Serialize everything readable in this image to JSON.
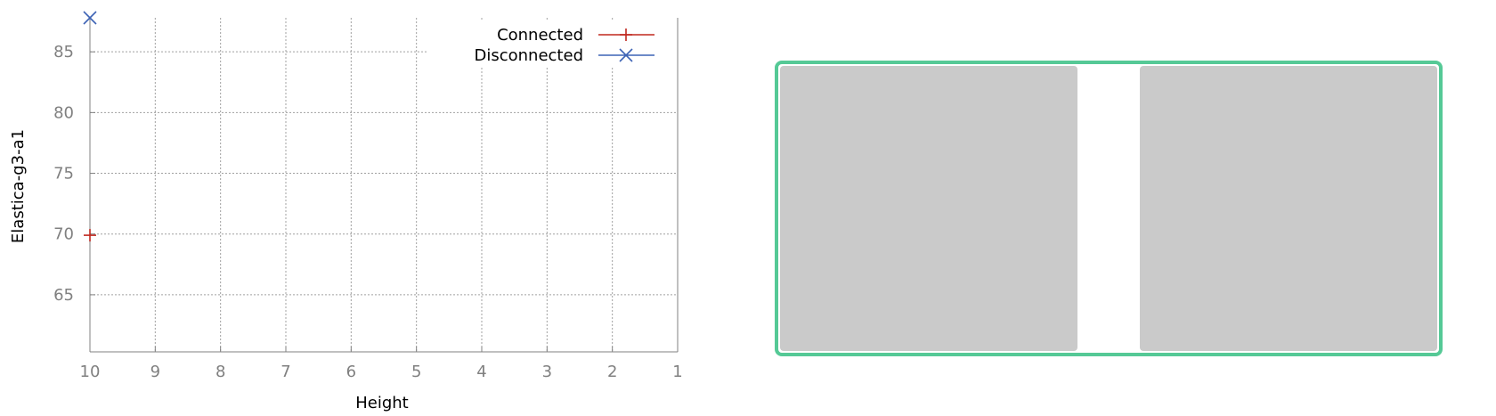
{
  "chart_data": {
    "type": "scatter",
    "title": "",
    "xlabel": "Height",
    "ylabel": "Elastica-g3-a1",
    "xlim": [
      10,
      1
    ],
    "x_reversed": true,
    "ylim": [
      60.3,
      87.8
    ],
    "x_ticks": [
      "10",
      "9",
      "8",
      "7",
      "6",
      "5",
      "4",
      "3",
      "2",
      "1"
    ],
    "y_ticks": [
      "65",
      "70",
      "75",
      "80",
      "85"
    ],
    "grid": true,
    "legend_position": "top-right",
    "series": [
      {
        "name": "Connected",
        "marker": "plus",
        "color": "#c0281f",
        "points": [
          {
            "x": 10,
            "y": 69.9
          }
        ]
      },
      {
        "name": "Disconnected",
        "marker": "cross",
        "color": "#3d63b5",
        "points": [
          {
            "x": 10,
            "y": 87.8
          }
        ]
      }
    ]
  },
  "diagram": {
    "frame_color": "#55c996",
    "block_color": "#cacaca"
  }
}
